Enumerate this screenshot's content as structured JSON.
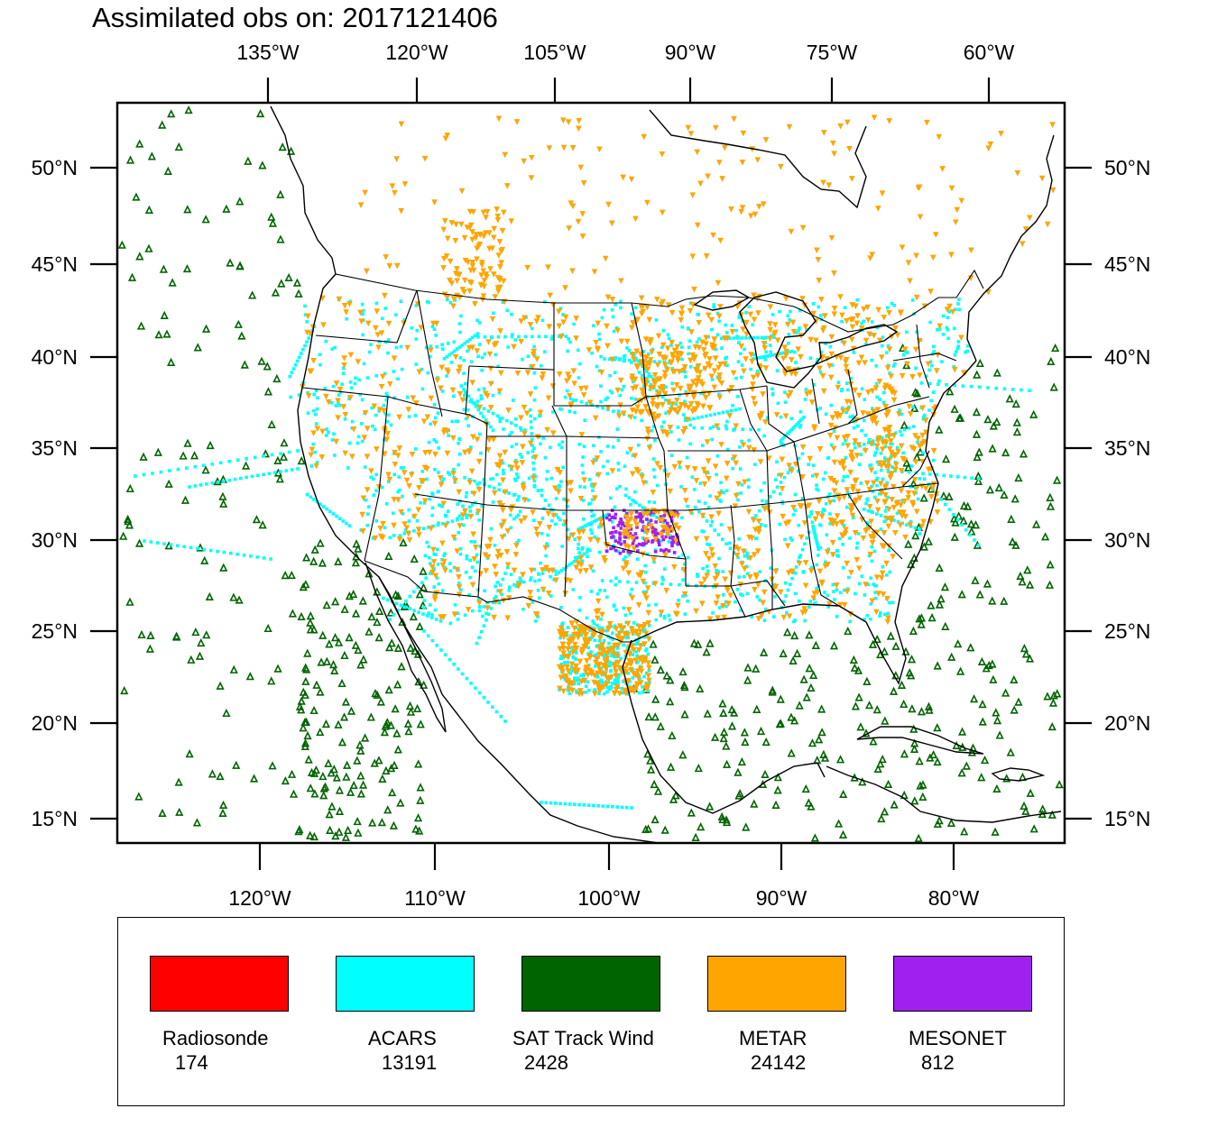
{
  "title": "Assimilated obs on: 2017121406",
  "top_axis_labels": [
    "135°W",
    "120°W",
    "105°W",
    "90°W",
    "75°W",
    "60°W"
  ],
  "bottom_axis_labels": [
    "120°W",
    "110°W",
    "100°W",
    "90°W",
    "80°W"
  ],
  "left_axis_labels": [
    "50°N",
    "45°N",
    "40°N",
    "35°N",
    "30°N",
    "25°N",
    "20°N",
    "15°N"
  ],
  "right_axis_labels": [
    "50°N",
    "45°N",
    "40°N",
    "35°N",
    "30°N",
    "25°N",
    "20°N",
    "15°N"
  ],
  "legend": [
    {
      "name": "Radiosonde",
      "count": "174",
      "color": "#ff0000"
    },
    {
      "name": "ACARS",
      "count": "13191",
      "color": "#00ffff"
    },
    {
      "name": "SAT Track Wind",
      "count": "2428",
      "color": "#006400"
    },
    {
      "name": "METAR",
      "count": "24142",
      "color": "#ffa500"
    },
    {
      "name": "MESONET",
      "count": "812",
      "color": "#a020f0"
    }
  ],
  "colors": {
    "radiosonde": "#ff0000",
    "acars": "#00ffff",
    "sat_track_wind": "#006400",
    "metar": "#ffa500",
    "mesonet": "#a020f0",
    "outline": "#000000"
  }
}
